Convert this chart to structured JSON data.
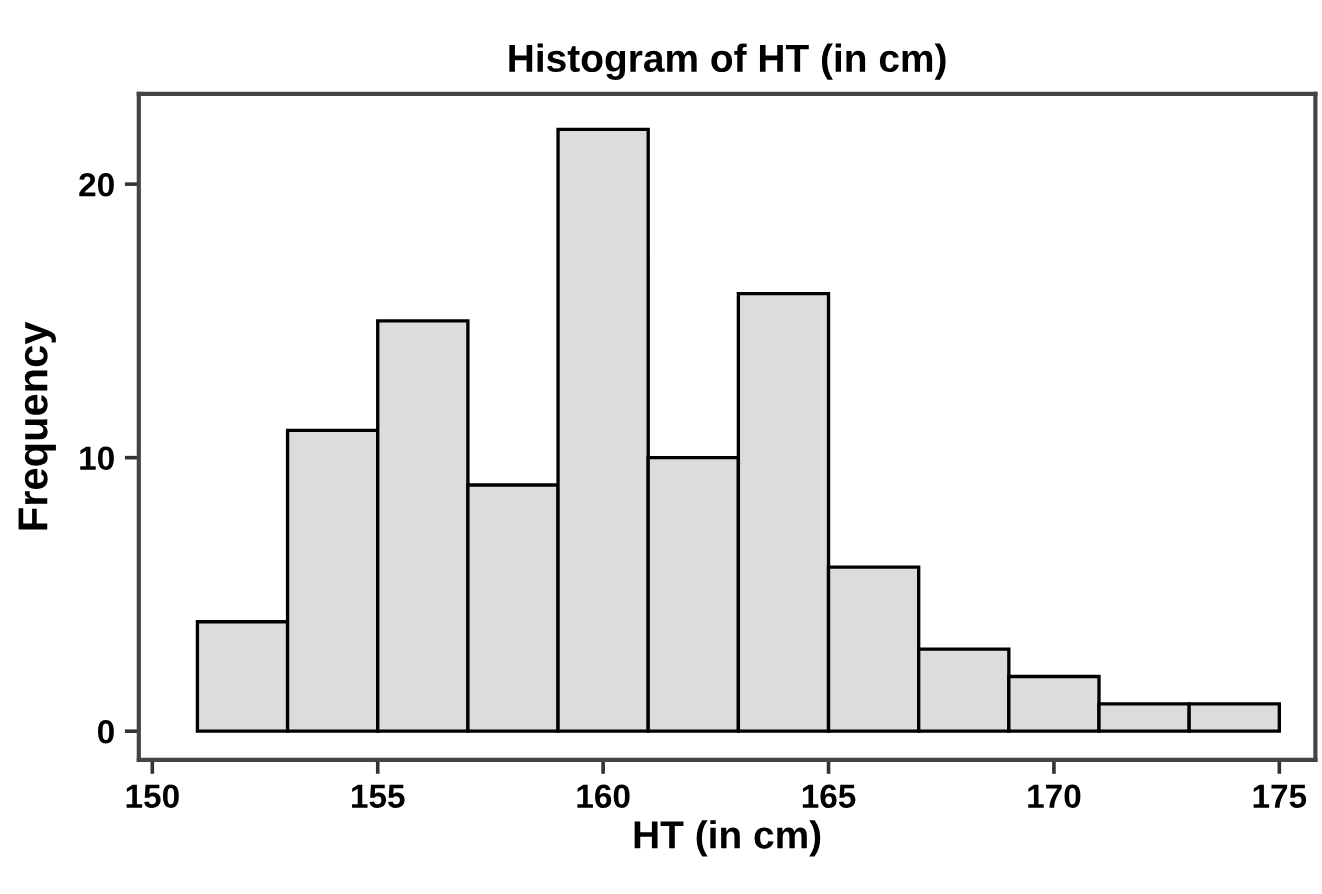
{
  "chart_data": {
    "type": "histogram",
    "title": "Histogram of HT (in cm)",
    "xlabel": "HT (in cm)",
    "ylabel": "Frequency",
    "bins": [
      151,
      153,
      155,
      157,
      159,
      161,
      163,
      165,
      167,
      169,
      171,
      173,
      175
    ],
    "values": [
      4,
      11,
      15,
      9,
      22,
      10,
      16,
      6,
      3,
      2,
      1,
      1
    ],
    "color": "#dcdcdc",
    "xlim": [
      149.7,
      175.8
    ],
    "xticks": [
      150,
      155,
      160,
      165,
      170,
      175
    ],
    "ylim": [
      -1.05,
      23.3
    ],
    "yticks": [
      0,
      10,
      20
    ],
    "grid": false,
    "legend": false
  }
}
